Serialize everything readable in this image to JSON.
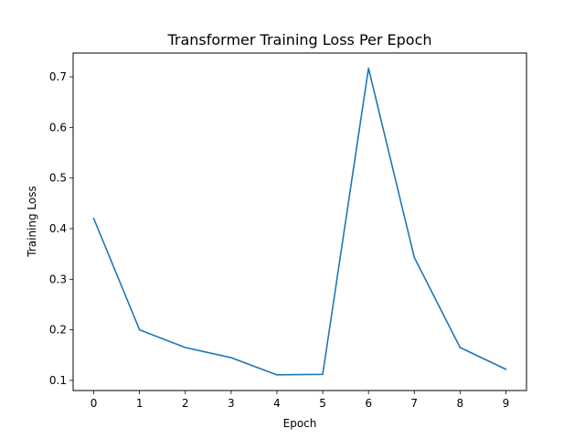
{
  "chart_data": {
    "type": "line",
    "title": "Transformer Training Loss Per Epoch",
    "xlabel": "Epoch",
    "ylabel": "Training Loss",
    "x": [
      0,
      1,
      2,
      3,
      4,
      5,
      6,
      7,
      8,
      9
    ],
    "series": [
      {
        "values": [
          0.42,
          0.2,
          0.165,
          0.145,
          0.111,
          0.112,
          0.717,
          0.343,
          0.165,
          0.122
        ],
        "color": "#1f77b4"
      }
    ],
    "xticks": [
      "0",
      "1",
      "2",
      "3",
      "4",
      "5",
      "6",
      "7",
      "8",
      "9"
    ],
    "yticks": [
      "0.1",
      "0.2",
      "0.3",
      "0.4",
      "0.5",
      "0.6",
      "0.7"
    ],
    "xlim": [
      -0.45,
      9.45
    ],
    "ylim": [
      0.08,
      0.747
    ],
    "grid": false,
    "legend": "none"
  }
}
